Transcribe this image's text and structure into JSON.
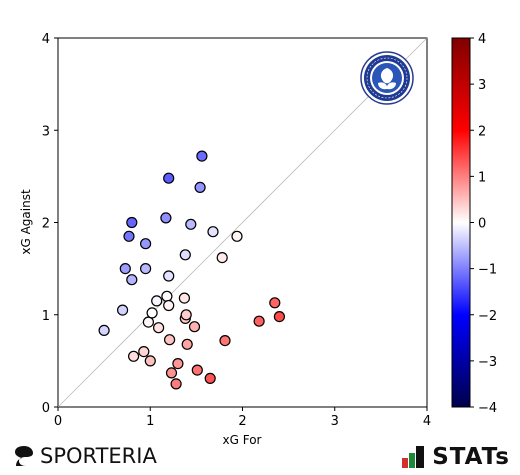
{
  "chart_data": {
    "type": "scatter",
    "xlabel": "xG For",
    "ylabel": "xG Against",
    "xlim": [
      0,
      4
    ],
    "ylim": [
      0,
      4
    ],
    "xticks": [
      "0",
      "1",
      "2",
      "3",
      "4"
    ],
    "yticks": [
      "0",
      "1",
      "2",
      "3",
      "4"
    ],
    "reference_line": "y = x",
    "color_metric": "xG For − xG Against",
    "colorbar": {
      "range": [
        -4,
        4
      ],
      "ticks": [
        "4",
        "3",
        "2",
        "1",
        "0",
        "−1",
        "−2",
        "−3",
        "−4"
      ],
      "colormap": "seismic"
    },
    "points": [
      {
        "x": 0.5,
        "y": 0.83
      },
      {
        "x": 0.7,
        "y": 1.05
      },
      {
        "x": 0.73,
        "y": 1.5
      },
      {
        "x": 0.77,
        "y": 1.85
      },
      {
        "x": 0.8,
        "y": 1.38
      },
      {
        "x": 0.8,
        "y": 2.0
      },
      {
        "x": 0.82,
        "y": 0.55
      },
      {
        "x": 0.93,
        "y": 0.6
      },
      {
        "x": 0.95,
        "y": 1.5
      },
      {
        "x": 0.95,
        "y": 1.77
      },
      {
        "x": 0.98,
        "y": 0.92
      },
      {
        "x": 1.0,
        "y": 0.5
      },
      {
        "x": 1.02,
        "y": 1.02
      },
      {
        "x": 1.07,
        "y": 1.15
      },
      {
        "x": 1.09,
        "y": 0.86
      },
      {
        "x": 1.17,
        "y": 2.05
      },
      {
        "x": 1.18,
        "y": 1.2
      },
      {
        "x": 1.2,
        "y": 1.42
      },
      {
        "x": 1.2,
        "y": 2.48
      },
      {
        "x": 1.2,
        "y": 1.1
      },
      {
        "x": 1.21,
        "y": 0.73
      },
      {
        "x": 1.23,
        "y": 0.37
      },
      {
        "x": 1.28,
        "y": 0.25
      },
      {
        "x": 1.3,
        "y": 0.47
      },
      {
        "x": 1.37,
        "y": 1.18
      },
      {
        "x": 1.38,
        "y": 1.65
      },
      {
        "x": 1.38,
        "y": 0.96
      },
      {
        "x": 1.39,
        "y": 1.0
      },
      {
        "x": 1.4,
        "y": 0.68
      },
      {
        "x": 1.44,
        "y": 1.98
      },
      {
        "x": 1.48,
        "y": 0.87
      },
      {
        "x": 1.51,
        "y": 0.4
      },
      {
        "x": 1.54,
        "y": 2.38
      },
      {
        "x": 1.56,
        "y": 2.72
      },
      {
        "x": 1.65,
        "y": 0.31
      },
      {
        "x": 1.68,
        "y": 1.9
      },
      {
        "x": 1.78,
        "y": 1.62
      },
      {
        "x": 1.81,
        "y": 0.72
      },
      {
        "x": 1.94,
        "y": 1.85
      },
      {
        "x": 2.18,
        "y": 0.93
      },
      {
        "x": 2.35,
        "y": 1.13
      },
      {
        "x": 2.4,
        "y": 0.98
      }
    ]
  },
  "branding": {
    "left_logo_text": "SPORTERIA",
    "right_logo_text": "STATs",
    "club_crest": "mito-hollyhock-crest"
  }
}
